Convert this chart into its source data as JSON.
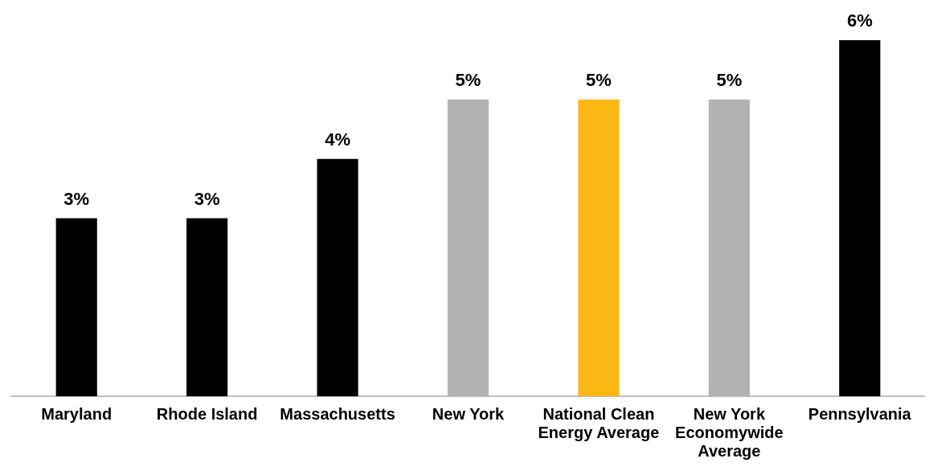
{
  "chart_data": {
    "type": "bar",
    "categories": [
      "Maryland",
      "Rhode Island",
      "Massachusetts",
      "New York",
      "National Clean Energy Average",
      "New York Economywide Average",
      "Pennsylvania"
    ],
    "values": [
      3,
      3,
      4,
      5,
      5,
      5,
      6
    ],
    "colors": [
      "#000000",
      "#000000",
      "#000000",
      "#b1b3b3",
      "#fdb714",
      "#b1b3b3",
      "#000000"
    ],
    "value_labels": [
      "3%",
      "3%",
      "4%",
      "5%",
      "5%",
      "5%",
      "6%"
    ],
    "ylim": [
      0,
      6
    ],
    "tick_labels": "x",
    "grid": false,
    "legend": false
  }
}
